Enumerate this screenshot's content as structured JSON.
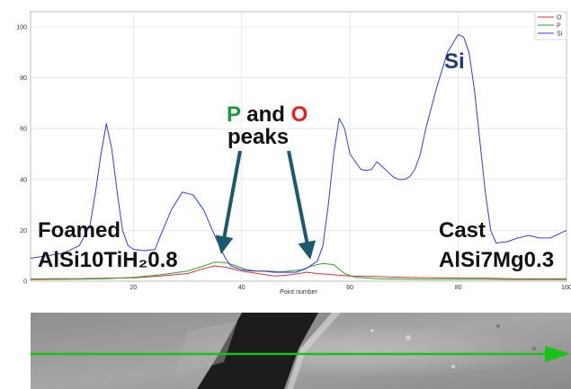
{
  "chart_data": {
    "type": "line",
    "xlabel": "Point number",
    "ylabel": "",
    "xlim": [
      1,
      100
    ],
    "ylim": [
      0,
      106
    ],
    "x_ticks": [
      20,
      40,
      60,
      80,
      100
    ],
    "y_ticks": [
      0,
      20,
      40,
      60,
      80,
      100
    ],
    "grid": true,
    "legend_position": "top-right",
    "series": [
      {
        "name": "O",
        "color": "#e03030",
        "points": [
          [
            1,
            0.9
          ],
          [
            5,
            1
          ],
          [
            10,
            1
          ],
          [
            15,
            1.2
          ],
          [
            20,
            1.3
          ],
          [
            25,
            2
          ],
          [
            30,
            3
          ],
          [
            33,
            5
          ],
          [
            35,
            6
          ],
          [
            37,
            5.5
          ],
          [
            40,
            4
          ],
          [
            43,
            3
          ],
          [
            46,
            2
          ],
          [
            49,
            2.5
          ],
          [
            52,
            3.5
          ],
          [
            54,
            3
          ],
          [
            57,
            2.5
          ],
          [
            60,
            2
          ],
          [
            65,
            1.8
          ],
          [
            70,
            1.5
          ],
          [
            75,
            1.3
          ],
          [
            80,
            1.2
          ],
          [
            85,
            1.2
          ],
          [
            90,
            1
          ],
          [
            95,
            1
          ],
          [
            100,
            1
          ]
        ]
      },
      {
        "name": "P",
        "color": "#2ca02c",
        "points": [
          [
            1,
            0.6
          ],
          [
            5,
            0.7
          ],
          [
            10,
            0.8
          ],
          [
            15,
            1
          ],
          [
            20,
            1.5
          ],
          [
            25,
            2.5
          ],
          [
            30,
            4
          ],
          [
            33,
            6
          ],
          [
            35,
            7.5
          ],
          [
            37,
            7.3
          ],
          [
            39,
            6
          ],
          [
            41,
            4.5
          ],
          [
            43,
            4
          ],
          [
            45,
            4
          ],
          [
            47,
            3.7
          ],
          [
            49,
            4
          ],
          [
            51,
            4.5
          ],
          [
            53,
            6
          ],
          [
            55,
            7
          ],
          [
            57,
            6.5
          ],
          [
            59,
            3
          ],
          [
            61,
            1.5
          ],
          [
            65,
            1
          ],
          [
            70,
            0.8
          ],
          [
            75,
            0.7
          ],
          [
            80,
            0.7
          ],
          [
            85,
            0.7
          ],
          [
            90,
            0.6
          ],
          [
            95,
            0.6
          ],
          [
            100,
            0.6
          ]
        ]
      },
      {
        "name": "Si",
        "color": "#3b3bd6",
        "points": [
          [
            1,
            9
          ],
          [
            4,
            10
          ],
          [
            7,
            11
          ],
          [
            10,
            14
          ],
          [
            12,
            22
          ],
          [
            13,
            35
          ],
          [
            14,
            50
          ],
          [
            15,
            62
          ],
          [
            16,
            52
          ],
          [
            17,
            35
          ],
          [
            18,
            20
          ],
          [
            19,
            14
          ],
          [
            20,
            12.5
          ],
          [
            22,
            12
          ],
          [
            24,
            12.5
          ],
          [
            25,
            18
          ],
          [
            27,
            28
          ],
          [
            29,
            35
          ],
          [
            31,
            34
          ],
          [
            33,
            28
          ],
          [
            35,
            18
          ],
          [
            37,
            9
          ],
          [
            38,
            6
          ],
          [
            40,
            4.5
          ],
          [
            42,
            4
          ],
          [
            44,
            4
          ],
          [
            46,
            3.5
          ],
          [
            48,
            3.5
          ],
          [
            50,
            3.5
          ],
          [
            52,
            5
          ],
          [
            54,
            8
          ],
          [
            55,
            14
          ],
          [
            56,
            30
          ],
          [
            57,
            50
          ],
          [
            58,
            64
          ],
          [
            59,
            60
          ],
          [
            60,
            50
          ],
          [
            62,
            44
          ],
          [
            63,
            43.5
          ],
          [
            64,
            44
          ],
          [
            65,
            47
          ],
          [
            66,
            45
          ],
          [
            67,
            43
          ],
          [
            68,
            41
          ],
          [
            69,
            40
          ],
          [
            70,
            40
          ],
          [
            71,
            41
          ],
          [
            72,
            44
          ],
          [
            73,
            50
          ],
          [
            74,
            60
          ],
          [
            76,
            76
          ],
          [
            78,
            90
          ],
          [
            80,
            97
          ],
          [
            81,
            96
          ],
          [
            82,
            90
          ],
          [
            83,
            75
          ],
          [
            84,
            55
          ],
          [
            85,
            35
          ],
          [
            86,
            20
          ],
          [
            87,
            15
          ],
          [
            89,
            15.5
          ],
          [
            91,
            17
          ],
          [
            93,
            18
          ],
          [
            95,
            17
          ],
          [
            97,
            17
          ],
          [
            99,
            19
          ],
          [
            100,
            20
          ]
        ]
      }
    ],
    "annotations": [
      {
        "text": "Si",
        "color": "#1f3a7a"
      },
      {
        "text_parts": [
          {
            "text": "P",
            "color": "#1a9a3a"
          },
          {
            "text": " and ",
            "color": "#111111"
          },
          {
            "text": "O",
            "color": "#e8201a"
          }
        ],
        "line2": "peaks"
      },
      {
        "text": "Foamed",
        "line2": "AlSi10TiH₂0.8"
      },
      {
        "text": "Cast",
        "line2": "AlSi7Mg0.3"
      }
    ],
    "arrow_color": "#1b5a6e"
  },
  "image_strip": {
    "description_colors": {
      "background": "#9a9a9a",
      "dark_band": "#1a1a1a",
      "scan_line": "#17c317"
    }
  }
}
